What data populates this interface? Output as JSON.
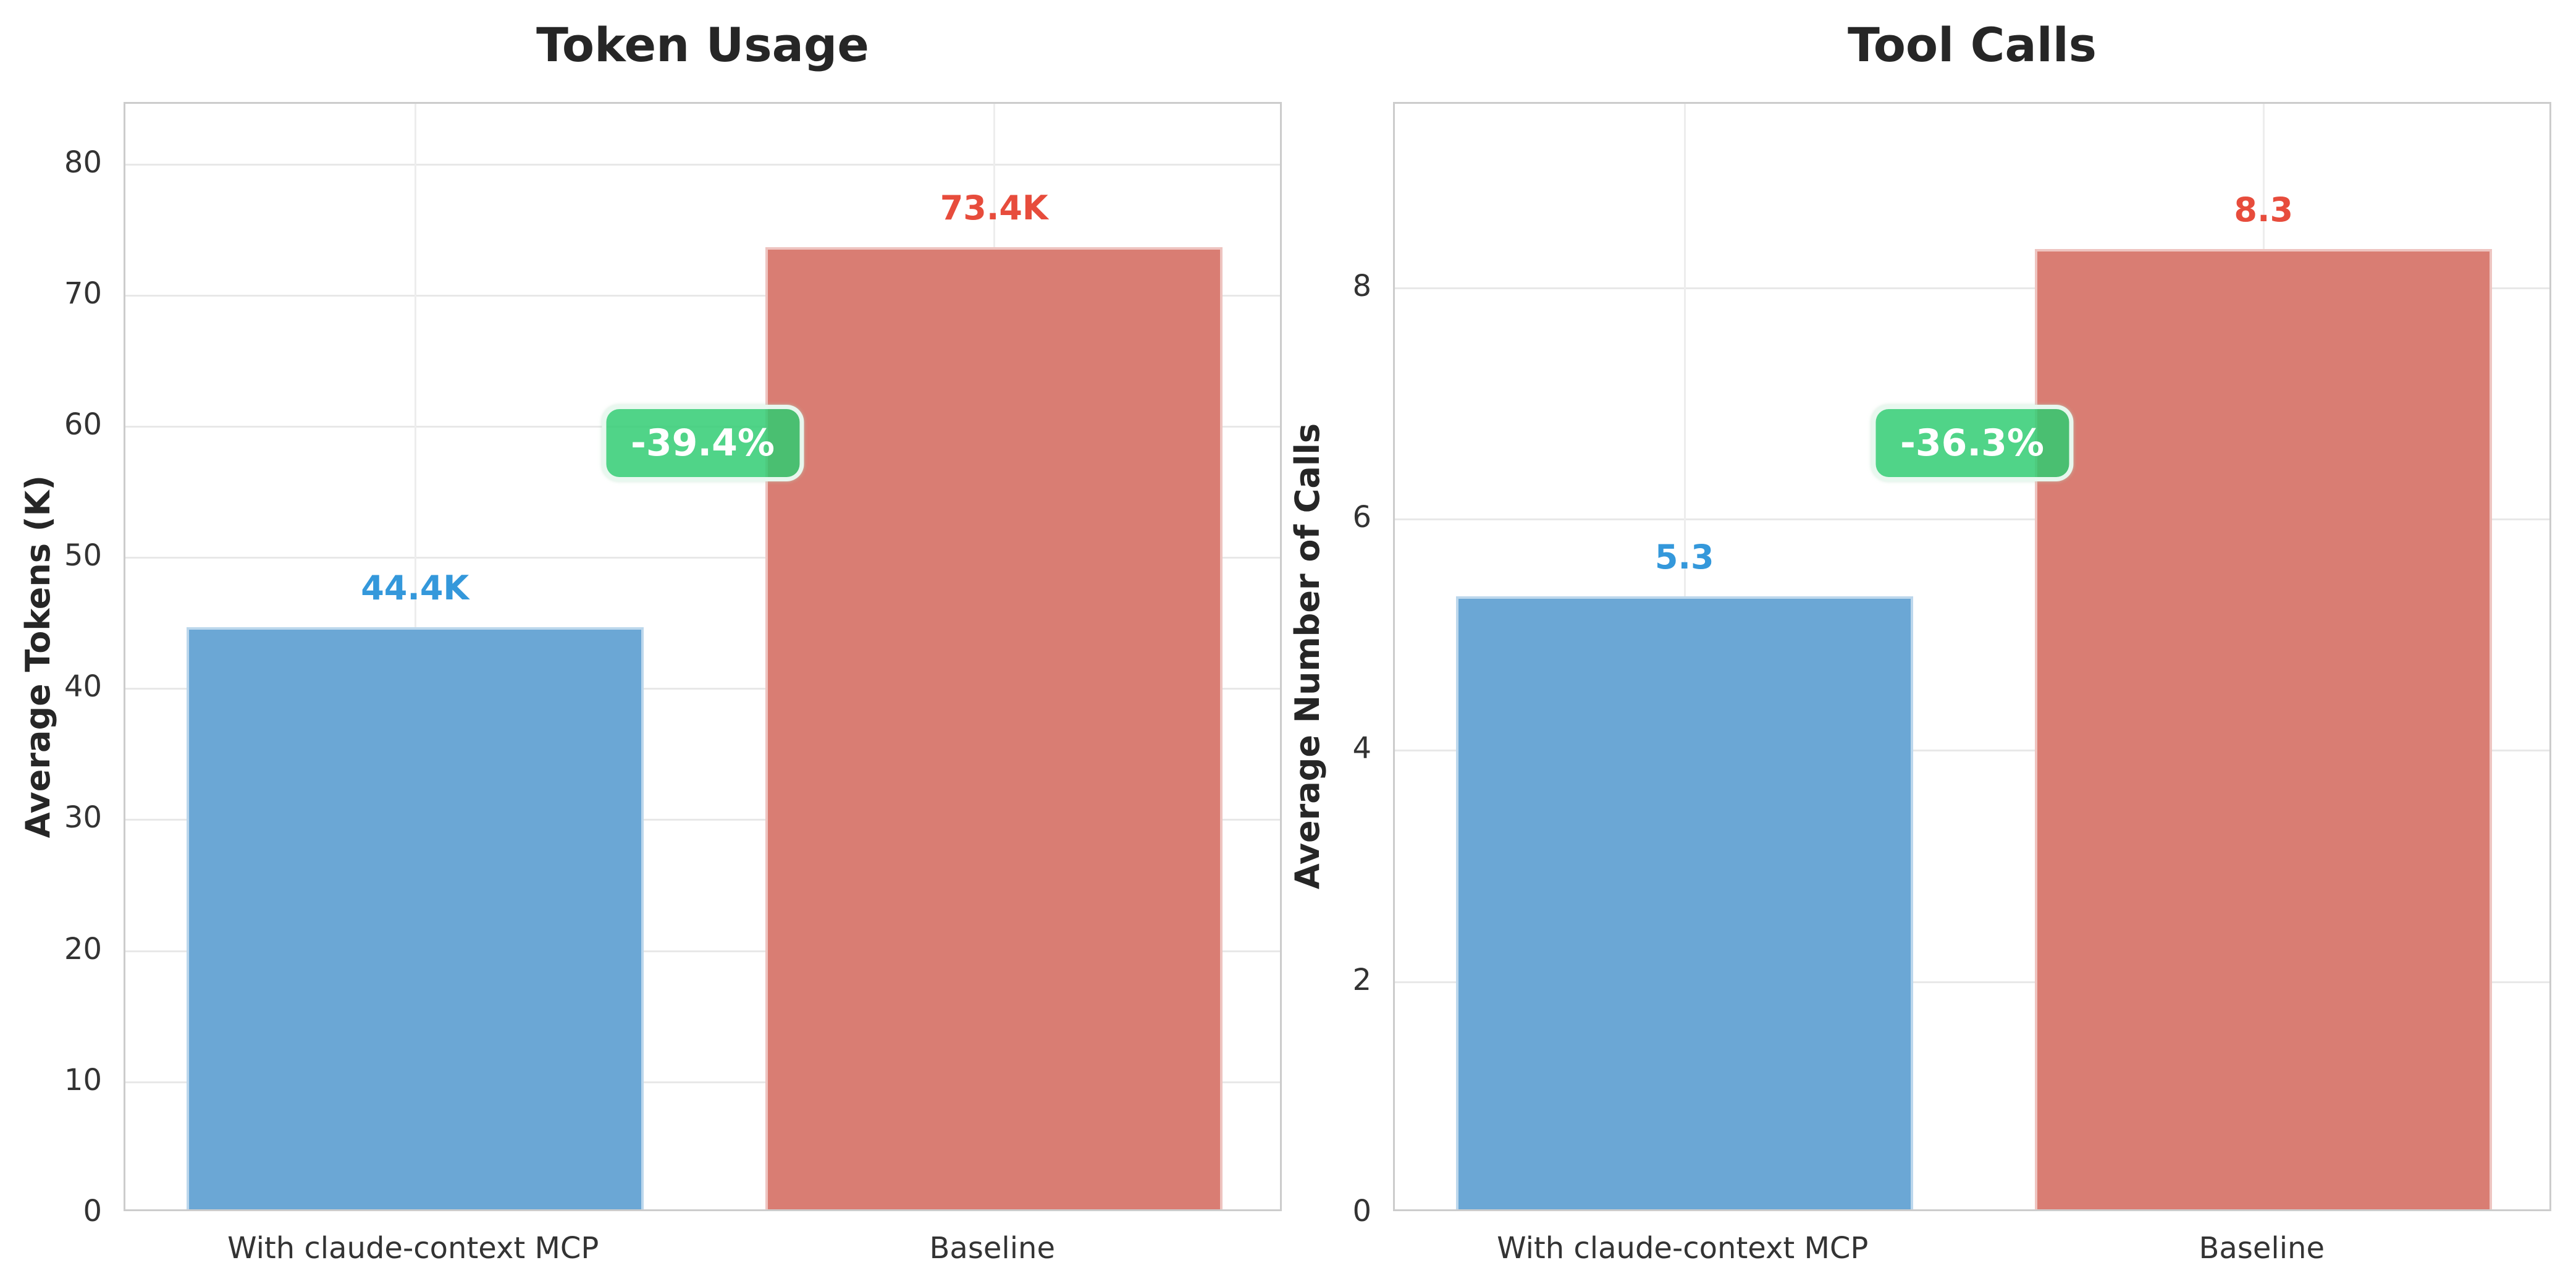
{
  "figure": {
    "background": "#ffffff",
    "text_color": "#262626",
    "tick_color": "#333333",
    "grid_color": "#e8e8e8"
  },
  "chart_data": [
    {
      "type": "bar",
      "title": "Token Usage",
      "ylabel": "Average Tokens (K)",
      "xlabel": "",
      "categories": [
        "With claude-context MCP",
        "Baseline"
      ],
      "values": [
        44.4,
        73.4
      ],
      "bar_labels": [
        "44.4K",
        "73.4K"
      ],
      "bar_colors": [
        "#6ba7d5",
        "#d97d73"
      ],
      "bar_label_colors": [
        "#3498db",
        "#e74c3c"
      ],
      "annotation": {
        "text": "-39.4%",
        "bg": "rgba(46,204,113,0.84)",
        "text_color": "#ffffff"
      },
      "ylim": [
        0,
        84.6
      ],
      "yticks": [
        0,
        10,
        20,
        30,
        40,
        50,
        60,
        70,
        80
      ],
      "grid": true,
      "legend_position": "none"
    },
    {
      "type": "bar",
      "title": "Tool Calls",
      "ylabel": "Average Number of Calls",
      "xlabel": "",
      "categories": [
        "With claude-context MCP",
        "Baseline"
      ],
      "values": [
        5.3,
        8.3
      ],
      "bar_labels": [
        "5.3",
        "8.3"
      ],
      "bar_colors": [
        "#6ba7d5",
        "#d97d73"
      ],
      "bar_label_colors": [
        "#3498db",
        "#e74c3c"
      ],
      "annotation": {
        "text": "-36.3%",
        "bg": "rgba(46,204,113,0.84)",
        "text_color": "#ffffff"
      },
      "ylim": [
        0,
        9.59
      ],
      "yticks": [
        0,
        2,
        4,
        6,
        8
      ],
      "grid": true,
      "legend_position": "none"
    }
  ]
}
